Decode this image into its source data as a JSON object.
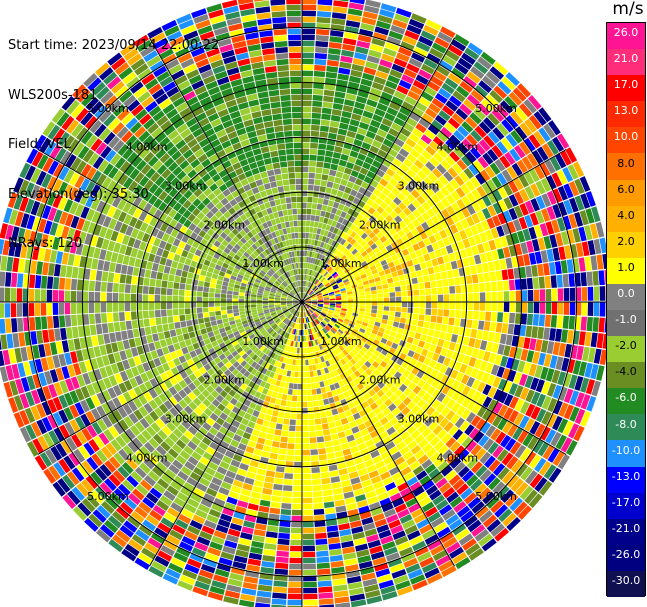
{
  "info": {
    "start_time": "Start time: 2023/09/14 22:00:22",
    "instrument": "WLS200s-181",
    "field": "Field: VEL",
    "elevation": "Elevation(deg): 35.30",
    "nrays": "NRays: 120"
  },
  "colorbar": {
    "unit": "m/s",
    "labels": [
      "26.0",
      "21.0",
      "17.0",
      "13.0",
      "10.0",
      "8.0",
      "6.0",
      "4.0",
      "2.0",
      "1.0",
      "0.0",
      "-1.0",
      "-2.0",
      "-4.0",
      "-6.0",
      "-8.0",
      "-10.0",
      "-13.0",
      "-17.0",
      "-21.0",
      "-26.0",
      "-30.0"
    ],
    "colors": [
      "#ff1493",
      "#ff2d7a",
      "#ff0000",
      "#ff2a00",
      "#ff4500",
      "#ff7000",
      "#ff9a00",
      "#ffb000",
      "#ffd000",
      "#ffff00",
      "#808080",
      "#707070",
      "#9acd32",
      "#6b8e23",
      "#228b22",
      "#2e8b57",
      "#1e90ff",
      "#0000ff",
      "#0000cd",
      "#00008b",
      "#000080",
      "#101050"
    ]
  },
  "chart_data": {
    "type": "heatmap",
    "projection": "polar PPI",
    "range_ring_labels": [
      "1.00km",
      "2.00km",
      "3.00km",
      "4.00km",
      "5.00km"
    ],
    "range_ring_km": [
      1,
      2,
      3,
      4,
      5
    ],
    "max_range_km": 5.0,
    "n_rays": 120,
    "color_scale": "VEL m/s, -30.0 to 26.0"
  }
}
